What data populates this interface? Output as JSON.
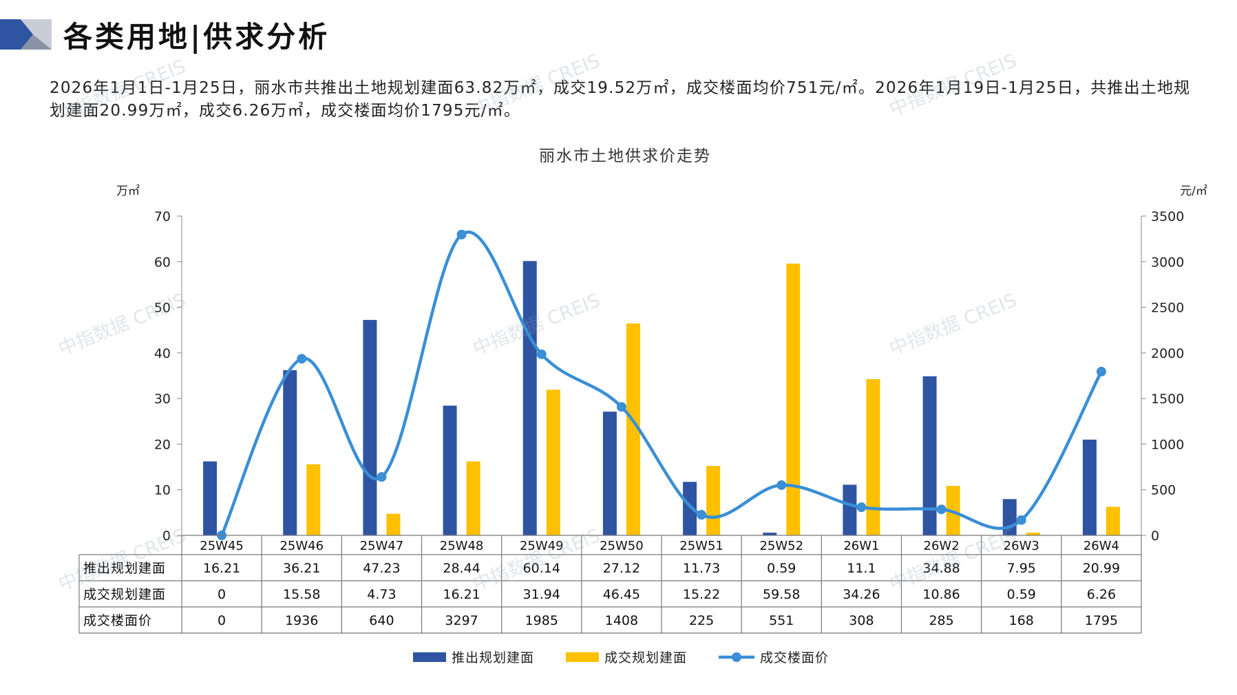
{
  "page": {
    "title": "各类用地|供求分析",
    "summary": "2026年1月1日-1月25日，丽水市共推出土地规划建面63.82万㎡，成交19.52万㎡，成交楼面均价751元/㎡。2026年1月19日-1月25日，共推出土地规划建面20.99万㎡，成交6.26万㎡，成交楼面均价1795元/㎡。",
    "watermark": "中指数据 CREIS"
  },
  "colors": {
    "bar1": "#2E54A2",
    "bar2": "#FFC000",
    "line": "#3A8FD6",
    "accent": "#2E54A2"
  },
  "chart_data": {
    "type": "bar",
    "title": "丽水市土地供求价走势",
    "ylabel_left": "万㎡",
    "ylabel_right": "元/㎡",
    "ylim_left": [
      0,
      70
    ],
    "ylim_right": [
      0,
      3500
    ],
    "left_ticks": [
      0,
      10,
      20,
      30,
      40,
      50,
      60,
      70
    ],
    "right_ticks": [
      0,
      500,
      1000,
      1500,
      2000,
      2500,
      3000,
      3500
    ],
    "categories": [
      "25W45",
      "25W46",
      "25W47",
      "25W48",
      "25W49",
      "25W50",
      "25W51",
      "25W52",
      "26W1",
      "26W2",
      "26W3",
      "26W4"
    ],
    "series": [
      {
        "name": "推出规划建面",
        "type": "bar",
        "axis": "left",
        "values": [
          16.21,
          36.21,
          47.23,
          28.44,
          60.14,
          27.12,
          11.73,
          0.59,
          11.1,
          34.88,
          7.95,
          20.99
        ],
        "labels": [
          "16.21",
          "36.21",
          "47.23",
          "28.44",
          "60.14",
          "27.12",
          "11.73",
          "0.59",
          "11.1",
          "34.88",
          "7.95",
          "20.99"
        ]
      },
      {
        "name": "成交规划建面",
        "type": "bar",
        "axis": "left",
        "values": [
          0,
          15.58,
          4.73,
          16.21,
          31.94,
          46.45,
          15.22,
          59.58,
          34.26,
          10.86,
          0.59,
          6.26
        ],
        "labels": [
          "0",
          "15.58",
          "4.73",
          "16.21",
          "31.94",
          "46.45",
          "15.22",
          "59.58",
          "34.26",
          "10.86",
          "0.59",
          "6.26"
        ]
      },
      {
        "name": "成交楼面价",
        "type": "line",
        "axis": "right",
        "values": [
          0,
          1936,
          640,
          3297,
          1985,
          1408,
          225,
          551,
          308,
          285,
          168,
          1795
        ],
        "labels": [
          "0",
          "1936",
          "640",
          "3297",
          "1985",
          "1408",
          "225",
          "551",
          "308",
          "285",
          "168",
          "1795"
        ]
      }
    ],
    "legend": "bottom",
    "grid": false
  }
}
